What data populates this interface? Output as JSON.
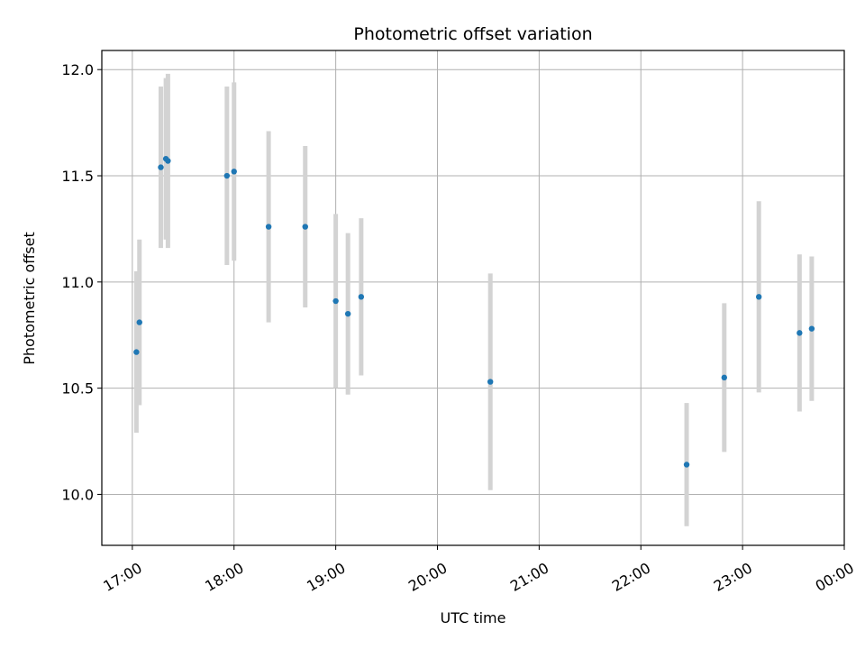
{
  "chart_data": {
    "type": "scatter",
    "title": "Photometric offset variation",
    "xlabel": "UTC time",
    "ylabel": "Photometric offset",
    "x_unit": "hours (UTC clock time, 24.0 = 00:00 of next day)",
    "xlim": [
      16.7,
      24.0
    ],
    "ylim": [
      9.76,
      12.09
    ],
    "x_ticks": [
      {
        "value": 17.0,
        "label": "17:00"
      },
      {
        "value": 18.0,
        "label": "18:00"
      },
      {
        "value": 19.0,
        "label": "19:00"
      },
      {
        "value": 20.0,
        "label": "20:00"
      },
      {
        "value": 21.0,
        "label": "21:00"
      },
      {
        "value": 22.0,
        "label": "22:00"
      },
      {
        "value": 23.0,
        "label": "23:00"
      },
      {
        "value": 24.0,
        "label": "00:00"
      }
    ],
    "y_ticks": [
      {
        "value": 10.0,
        "label": "10.0"
      },
      {
        "value": 10.5,
        "label": "10.5"
      },
      {
        "value": 11.0,
        "label": "11.0"
      },
      {
        "value": 11.5,
        "label": "11.5"
      },
      {
        "value": 12.0,
        "label": "12.0"
      }
    ],
    "grid": true,
    "marker_color": "#1f77b4",
    "errorbar_color": "#d3d3d3",
    "points": [
      {
        "x": 17.04,
        "y": 10.67,
        "err": 0.38
      },
      {
        "x": 17.07,
        "y": 10.81,
        "err": 0.39
      },
      {
        "x": 17.28,
        "y": 11.54,
        "err": 0.38
      },
      {
        "x": 17.33,
        "y": 11.58,
        "err": 0.38
      },
      {
        "x": 17.35,
        "y": 11.57,
        "err": 0.41
      },
      {
        "x": 17.93,
        "y": 11.5,
        "err": 0.42
      },
      {
        "x": 18.0,
        "y": 11.52,
        "err": 0.42
      },
      {
        "x": 18.34,
        "y": 11.26,
        "err": 0.45
      },
      {
        "x": 18.7,
        "y": 11.26,
        "err": 0.38
      },
      {
        "x": 19.0,
        "y": 10.91,
        "err": 0.41
      },
      {
        "x": 19.12,
        "y": 10.85,
        "err": 0.38
      },
      {
        "x": 19.25,
        "y": 10.93,
        "err": 0.37
      },
      {
        "x": 20.52,
        "y": 10.53,
        "err": 0.51
      },
      {
        "x": 22.45,
        "y": 10.14,
        "err": 0.29
      },
      {
        "x": 22.82,
        "y": 10.55,
        "err": 0.35
      },
      {
        "x": 23.16,
        "y": 10.93,
        "err": 0.45
      },
      {
        "x": 23.56,
        "y": 10.76,
        "err": 0.37
      },
      {
        "x": 23.68,
        "y": 10.78,
        "err": 0.34
      }
    ]
  }
}
